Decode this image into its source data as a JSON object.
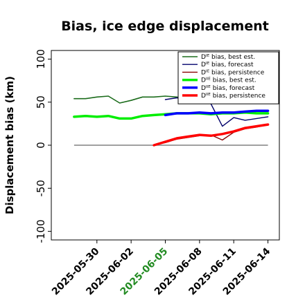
{
  "chart_data": {
    "type": "line",
    "title": "Bias, ice edge displacement",
    "xlabel": "",
    "ylabel": "Displacement bias (km)",
    "ylim": [
      -110,
      110
    ],
    "yticks": [
      -100,
      -50,
      0,
      50,
      100
    ],
    "xlim": [
      "2025-05-26",
      "2025-06-15"
    ],
    "xticks": [
      "2025-05-30",
      "2025-06-02",
      "2025-06-05",
      "2025-06-08",
      "2025-06-11",
      "2025-06-14"
    ],
    "highlight_tick": "2025-06-05",
    "highlight_color": "#228b22",
    "zero_line": 0,
    "grid": false,
    "legend_position": "top-right",
    "series": [
      {
        "name": "Dᴵᴱ bias, best est.",
        "color": "#1a6b1a",
        "width": 1.6,
        "x": [
          "2025-05-28",
          "2025-05-29",
          "2025-05-30",
          "2025-05-31",
          "2025-06-01",
          "2025-06-02",
          "2025-06-03",
          "2025-06-04",
          "2025-06-05",
          "2025-06-06",
          "2025-06-07",
          "2025-06-08",
          "2025-06-09",
          "2025-06-10",
          "2025-06-11",
          "2025-06-12",
          "2025-06-13",
          "2025-06-14"
        ],
        "y": [
          54,
          54,
          56,
          57,
          49,
          52,
          56,
          56,
          57,
          56,
          53,
          52,
          52,
          56,
          54,
          55,
          49,
          52
        ]
      },
      {
        "name": "Dᴵᴱ bias, forecast",
        "color": "#00006b",
        "width": 1.4,
        "x": [
          "2025-06-05",
          "2025-06-06",
          "2025-06-07",
          "2025-06-08",
          "2025-06-09",
          "2025-06-10",
          "2025-06-11",
          "2025-06-12",
          "2025-06-13",
          "2025-06-14"
        ],
        "y": [
          53,
          55,
          54,
          52,
          48,
          22,
          32,
          29,
          31,
          33
        ]
      },
      {
        "name": "Dᴵᴱ bias, persistence",
        "color": "#8b0000",
        "width": 1.4,
        "x": [
          "2025-06-04",
          "2025-06-05",
          "2025-06-06",
          "2025-06-07",
          "2025-06-08",
          "2025-06-09",
          "2025-06-10",
          "2025-06-11",
          "2025-06-12",
          "2025-06-13",
          "2025-06-14"
        ],
        "y": [
          0,
          3,
          7,
          9,
          11,
          12,
          6,
          15,
          19,
          21,
          24
        ]
      },
      {
        "name": "Dᴵᴵᴱ bias, best est.",
        "color": "#00ee00",
        "width": 3.5,
        "x": [
          "2025-05-28",
          "2025-05-29",
          "2025-05-30",
          "2025-05-31",
          "2025-06-01",
          "2025-06-02",
          "2025-06-03",
          "2025-06-04",
          "2025-06-05",
          "2025-06-06",
          "2025-06-07",
          "2025-06-08",
          "2025-06-09",
          "2025-06-10",
          "2025-06-11",
          "2025-06-12",
          "2025-06-13",
          "2025-06-14"
        ],
        "y": [
          33,
          34,
          33,
          34,
          31,
          31,
          34,
          35,
          36,
          37,
          37,
          37,
          36,
          37,
          37,
          38,
          37,
          37
        ]
      },
      {
        "name": "Dᴵᴵᴱ bias, forecast",
        "color": "#0000ff",
        "width": 3.5,
        "x": [
          "2025-06-05",
          "2025-06-06",
          "2025-06-07",
          "2025-06-08",
          "2025-06-09",
          "2025-06-10",
          "2025-06-11",
          "2025-06-12",
          "2025-06-13",
          "2025-06-14"
        ],
        "y": [
          35,
          37,
          37,
          38,
          37,
          38,
          38,
          39,
          40,
          40
        ]
      },
      {
        "name": "Dᴵᴵᴱ bias, persistence",
        "color": "#ff0000",
        "width": 3.5,
        "x": [
          "2025-06-04",
          "2025-06-05",
          "2025-06-06",
          "2025-06-07",
          "2025-06-08",
          "2025-06-09",
          "2025-06-10",
          "2025-06-11",
          "2025-06-12",
          "2025-06-13",
          "2025-06-14"
        ],
        "y": [
          0,
          4,
          8,
          10,
          12,
          11,
          13,
          16,
          20,
          22,
          24
        ]
      }
    ]
  }
}
